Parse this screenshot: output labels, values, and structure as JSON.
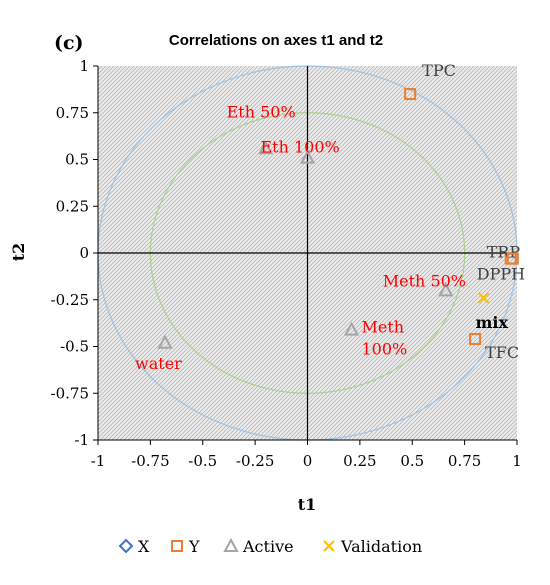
{
  "panel_label": "(c)",
  "chart_data": {
    "type": "scatter",
    "title": "Correlations on axes t1 and t2",
    "xlabel": "t1",
    "ylabel": "t2",
    "xlim": [
      -1,
      1
    ],
    "ylim": [
      -1,
      1
    ],
    "xticks": [
      "-1",
      "-0.75",
      "-0.5",
      "-0.25",
      "0",
      "0.25",
      "0.5",
      "0.75",
      "1"
    ],
    "yticks": [
      "1",
      "0.75",
      "0.5",
      "0.25",
      "0",
      "-0.25",
      "-0.5",
      "-0.75",
      "-1"
    ],
    "circles": [
      {
        "radius": 1,
        "color": "#9dc3e6"
      },
      {
        "radius": 0.75,
        "color": "#a9d18e"
      }
    ],
    "grid": false,
    "legend_position": "bottom",
    "series": [
      {
        "name": "X",
        "marker": "diamond",
        "color": "#4472c4",
        "label_color": "#404040",
        "points": []
      },
      {
        "name": "Y",
        "marker": "square",
        "color": "#ed7d31",
        "label_color": "#404040",
        "points": [
          {
            "label": "TPC",
            "x": 0.49,
            "y": 0.85
          },
          {
            "label": "TRP",
            "x": 0.97,
            "y": -0.03
          },
          {
            "label": "DPPH",
            "x": 0.98,
            "y": -0.03
          },
          {
            "label": "TFC",
            "x": 0.8,
            "y": -0.46
          }
        ]
      },
      {
        "name": "Active",
        "marker": "triangle",
        "color": "#a5a5a5",
        "label_color": "#ff0000",
        "points": [
          {
            "label": "Eth 50%",
            "x": -0.2,
            "y": 0.56
          },
          {
            "label": "Eth 100%",
            "x": 0.0,
            "y": 0.51
          },
          {
            "label": "Meth 50%",
            "x": 0.66,
            "y": -0.2
          },
          {
            "label": "Meth 100%",
            "x": 0.21,
            "y": -0.41
          },
          {
            "label": "water",
            "x": -0.68,
            "y": -0.48
          }
        ]
      },
      {
        "name": "Validation",
        "marker": "x",
        "color": "#ffc000",
        "label_color": "#000000",
        "points": [
          {
            "label": "mix",
            "x": 0.84,
            "y": -0.24
          }
        ]
      }
    ]
  }
}
